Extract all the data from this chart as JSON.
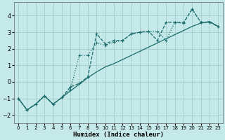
{
  "xlabel": "Humidex (Indice chaleur)",
  "bg_color": "#c5e8e8",
  "grid_color": "#aacfcf",
  "line_color": "#1a6b6b",
  "xlim": [
    -0.5,
    23.5
  ],
  "ylim": [
    -2.5,
    4.8
  ],
  "xticks": [
    0,
    1,
    2,
    3,
    4,
    5,
    6,
    7,
    8,
    9,
    10,
    11,
    12,
    13,
    14,
    15,
    16,
    17,
    18,
    19,
    20,
    21,
    22,
    23
  ],
  "yticks": [
    -2,
    -1,
    0,
    1,
    2,
    3,
    4
  ],
  "series1_x": [
    0,
    1,
    2,
    3,
    4,
    5,
    6,
    7,
    8,
    9,
    10,
    11,
    12,
    13,
    14,
    15,
    16,
    17,
    18,
    19,
    20,
    21,
    22,
    23
  ],
  "series1_y": [
    -1.0,
    -1.7,
    -1.35,
    -0.85,
    -1.35,
    -0.95,
    -0.55,
    -0.15,
    0.25,
    0.6,
    0.9,
    1.1,
    1.35,
    1.6,
    1.85,
    2.1,
    2.35,
    2.6,
    2.85,
    3.1,
    3.35,
    3.55,
    3.65,
    3.35
  ],
  "series2_x": [
    0,
    1,
    2,
    3,
    4,
    5,
    6,
    7,
    8,
    9,
    10,
    11,
    12,
    13,
    14,
    15,
    16,
    17,
    18,
    19,
    20,
    21,
    22,
    23
  ],
  "series2_y": [
    -1.0,
    -1.7,
    -1.35,
    -0.85,
    -1.35,
    -0.95,
    -0.45,
    1.6,
    1.6,
    2.35,
    2.2,
    2.4,
    2.5,
    2.9,
    3.0,
    3.05,
    3.05,
    2.5,
    3.6,
    3.6,
    4.4,
    3.6,
    3.6,
    3.35
  ],
  "series3_x": [
    0,
    1,
    2,
    3,
    4,
    5,
    6,
    7,
    8,
    9,
    10,
    11,
    12,
    13,
    14,
    15,
    16,
    17,
    18,
    19,
    20,
    21,
    22,
    23
  ],
  "series3_y": [
    -1.0,
    -1.7,
    -1.35,
    -0.85,
    -1.35,
    -0.95,
    -0.3,
    -0.1,
    0.3,
    2.9,
    2.3,
    2.5,
    2.5,
    2.9,
    3.0,
    3.05,
    2.5,
    3.6,
    3.6,
    3.55,
    4.4,
    3.6,
    3.6,
    3.35
  ]
}
